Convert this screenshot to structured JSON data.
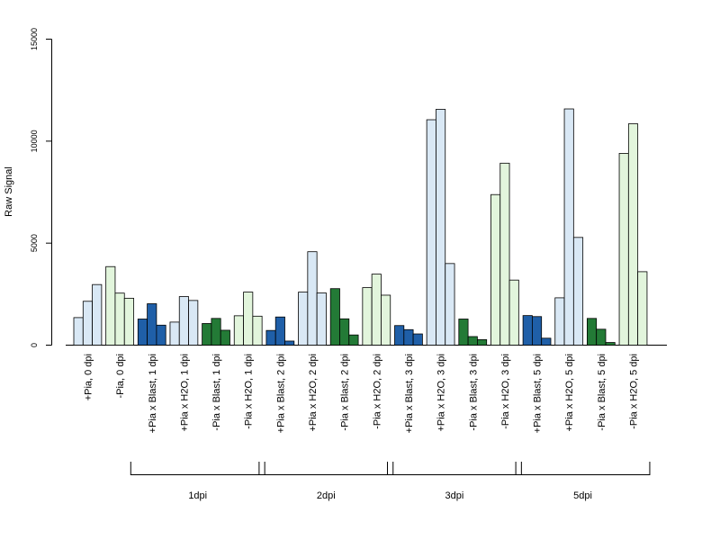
{
  "colors": {
    "dark_blue": "#1f5fa8",
    "light_blue": "#d9e8f5",
    "dark_green": "#237a36",
    "light_green": "#e2f5dc",
    "outline": "#000000"
  },
  "chart_data": {
    "type": "bar",
    "ylabel": "Raw Signal",
    "xlabel": "",
    "ylim": [
      0,
      15000
    ],
    "yticks": [
      "0",
      "5000",
      "10000",
      "15000"
    ],
    "grid": false,
    "legend": "none",
    "bars_per_category": 3,
    "categories": [
      {
        "label": "+Pia, 0 dpi",
        "color": "light_blue",
        "values": [
          1350,
          2150,
          2970
        ]
      },
      {
        "label": "-Pia, 0 dpi",
        "color": "light_green",
        "values": [
          3850,
          2550,
          2300
        ]
      },
      {
        "label": "+Pia x Blast, 1 dpi",
        "color": "dark_blue",
        "values": [
          1280,
          2030,
          980
        ]
      },
      {
        "label": "+Pia x H2O, 1 dpi",
        "color": "light_blue",
        "values": [
          1130,
          2380,
          2190
        ]
      },
      {
        "label": "-Pia x Blast, 1 dpi",
        "color": "dark_green",
        "values": [
          1060,
          1310,
          730
        ]
      },
      {
        "label": "-Pia x H2O, 1 dpi",
        "color": "light_green",
        "values": [
          1440,
          2600,
          1420
        ]
      },
      {
        "label": "+Pia x Blast, 2 dpi",
        "color": "dark_blue",
        "values": [
          720,
          1380,
          200
        ]
      },
      {
        "label": "+Pia x H2O, 2 dpi",
        "color": "light_blue",
        "values": [
          2600,
          4580,
          2560
        ]
      },
      {
        "label": "-Pia x Blast, 2 dpi",
        "color": "dark_green",
        "values": [
          2770,
          1290,
          500
        ]
      },
      {
        "label": "-Pia x H2O, 2 dpi",
        "color": "light_green",
        "values": [
          2820,
          3480,
          2450
        ]
      },
      {
        "label": "+Pia x Blast, 3 dpi",
        "color": "dark_blue",
        "values": [
          960,
          760,
          550
        ]
      },
      {
        "label": "+Pia x H2O, 3 dpi",
        "color": "light_blue",
        "values": [
          11050,
          11560,
          4000
        ]
      },
      {
        "label": "-Pia x Blast, 3 dpi",
        "color": "dark_green",
        "values": [
          1280,
          420,
          270
        ]
      },
      {
        "label": "-Pia x H2O, 3 dpi",
        "color": "light_green",
        "values": [
          7380,
          8920,
          3190
        ]
      },
      {
        "label": "+Pia x Blast, 5 dpi",
        "color": "dark_blue",
        "values": [
          1450,
          1400,
          340
        ]
      },
      {
        "label": "+Pia x H2O, 5 dpi",
        "color": "light_blue",
        "values": [
          2320,
          11580,
          5280
        ]
      },
      {
        "label": "-Pia x Blast, 5 dpi",
        "color": "dark_green",
        "values": [
          1310,
          780,
          130
        ]
      },
      {
        "label": "-Pia x H2O, 5 dpi",
        "color": "light_green",
        "values": [
          9400,
          10850,
          3600
        ]
      }
    ],
    "groups": [
      {
        "label": "1dpi",
        "first_category": 2,
        "last_category": 5
      },
      {
        "label": "2dpi",
        "first_category": 6,
        "last_category": 9
      },
      {
        "label": "3dpi",
        "first_category": 10,
        "last_category": 13
      },
      {
        "label": "5dpi",
        "first_category": 14,
        "last_category": 17
      }
    ]
  }
}
